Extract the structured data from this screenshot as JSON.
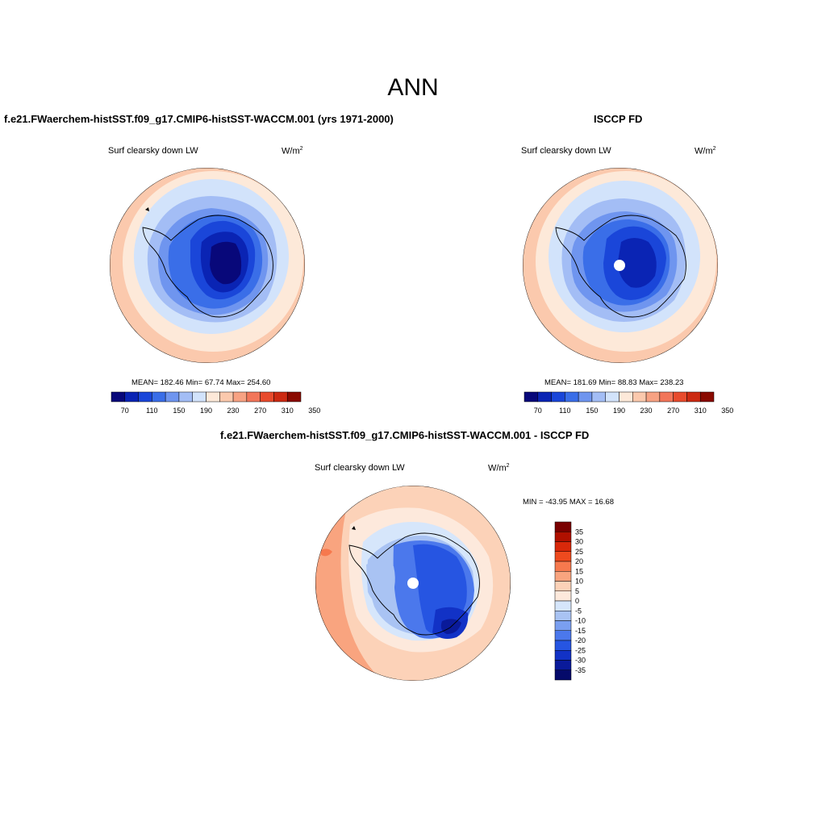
{
  "figure": {
    "title": "ANN"
  },
  "panels": [
    {
      "case_title": "f.e21.FWaerchem-histSST.f09_g17.CMIP6-histSST-WACCM.001 (yrs 1971-2000)",
      "variable": "Surf clearsky down LW",
      "units_base": "W/m",
      "units_exp": "2",
      "stats": "MEAN= 182.46  Min=  67.74  Max= 254.60",
      "colorbar_labels": [
        "70",
        "110",
        "150",
        "190",
        "230",
        "270",
        "310",
        "350"
      ]
    },
    {
      "case_title": "ISCCP FD",
      "variable": "Surf clearsky down LW",
      "units_base": "W/m",
      "units_exp": "2",
      "stats": "MEAN= 181.69  Min=  88.83  Max= 238.23",
      "colorbar_labels": [
        "70",
        "110",
        "150",
        "190",
        "230",
        "270",
        "310",
        "350"
      ]
    },
    {
      "case_title": "f.e21.FWaerchem-histSST.f09_g17.CMIP6-histSST-WACCM.001 - ISCCP FD",
      "variable": "Surf clearsky down LW",
      "units_base": "W/m",
      "units_exp": "2",
      "stats": "MIN = -43.95 MAX =  16.68",
      "colorbar_labels": [
        "35",
        "30",
        "25",
        "20",
        "15",
        "10",
        "5",
        "0",
        "-5",
        "-10",
        "-15",
        "-20",
        "-25",
        "-30",
        "-35"
      ]
    }
  ],
  "colors": {
    "field_scale": [
      "#08087a",
      "#0a24b4",
      "#1a46d9",
      "#3a6ee8",
      "#6f95ef",
      "#a3bdf5",
      "#d2e3fb",
      "#fde9d9",
      "#fbc9ad",
      "#f7a283",
      "#f2765a",
      "#e84b2d",
      "#cc2a12",
      "#8a0a00"
    ],
    "diff_scale": [
      "#7a0000",
      "#b01000",
      "#d8280a",
      "#ee4a1e",
      "#f6794e",
      "#f9a47f",
      "#fcd2b8",
      "#fde9dc",
      "#d6e6fb",
      "#a9c3f3",
      "#7a9ff0",
      "#4b78ec",
      "#2655e2",
      "#1232c6",
      "#0a1a9a",
      "#050a6a"
    ]
  }
}
